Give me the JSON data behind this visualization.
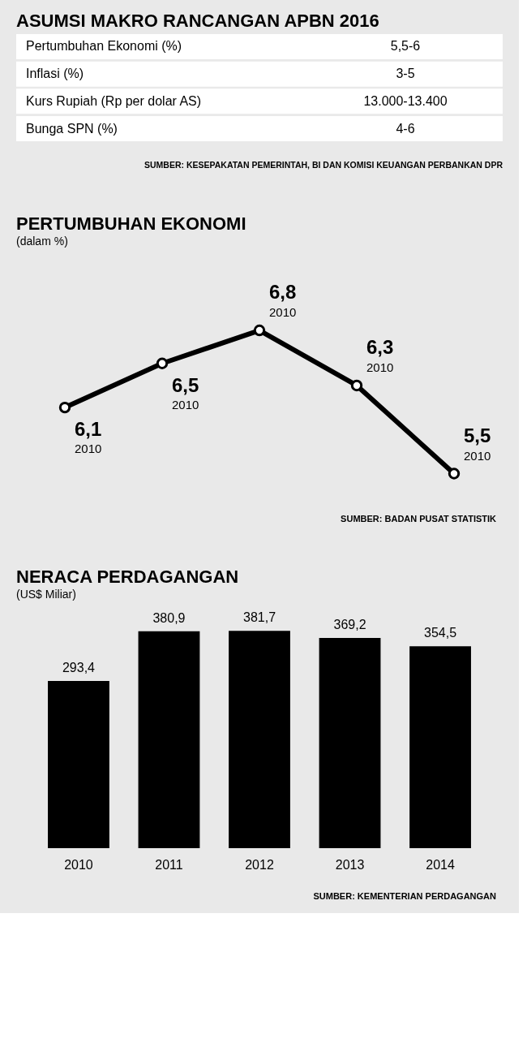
{
  "chart_data": [
    {
      "type": "other",
      "title": "ASUMSI MAKRO RANCANGAN APBN 2016",
      "annotations": [
        "Pertumbuhan Ekonomi (%)",
        "5,5-6",
        "Inflasi (%)",
        "3-5",
        "Kurs Rupiah (Rp per dolar AS)",
        "13.000-13.400",
        "Bunga SPN (%)",
        "4-6",
        "SUMBER: KESEPAKATAN PEMERINTAH, BI DAN KOMISI KEUANGAN PERBANKAN DPR"
      ]
    },
    {
      "type": "line",
      "title": "PERTUMBUHAN EKONOMI",
      "subtitle": "(dalam %)",
      "categories": [
        "2010",
        "2010",
        "2010",
        "2010",
        "2010"
      ],
      "series": [
        {
          "color": "#000000",
          "values": [
            6.1,
            6.5,
            6.8,
            6.3,
            5.5
          ],
          "value_labels": [
            "6,1",
            "6,5",
            "6,8",
            "6,3",
            "5,5"
          ]
        }
      ],
      "marker": "circle",
      "line_style": "solid",
      "annotations": [
        "SUMBER: BADAN PUSAT STATISTIK"
      ]
    },
    {
      "type": "bar",
      "title": "NERACA PERDAGANGAN",
      "subtitle": "(US$ Miliar)",
      "categories": [
        "2010",
        "2011",
        "2012",
        "2013",
        "2014"
      ],
      "series": [
        {
          "color": "#000000",
          "values": [
            293.4,
            380.9,
            381.7,
            369.2,
            354.5
          ],
          "value_labels": [
            "293,4",
            "380,9",
            "381,7",
            "369,2",
            "354,5"
          ]
        }
      ],
      "annotations": [
        "SUMBER: KEMENTERIAN PERDAGANGAN"
      ]
    }
  ]
}
